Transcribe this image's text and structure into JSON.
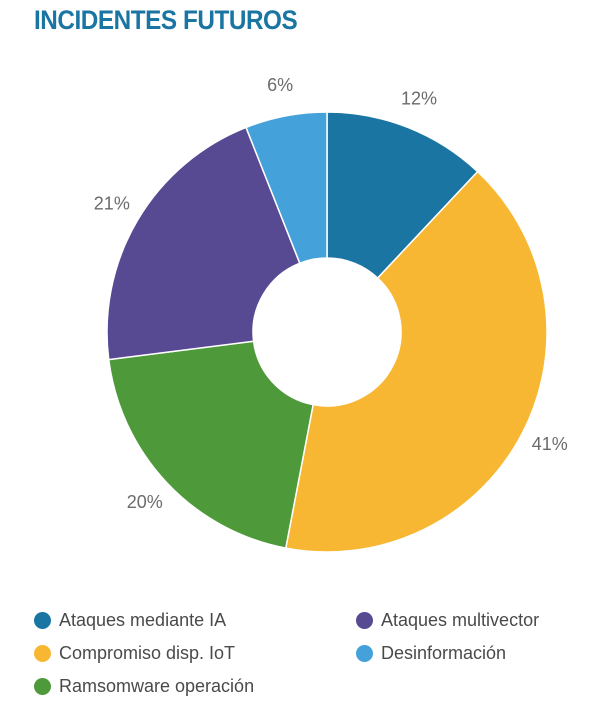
{
  "title": "INCIDENTES FUTUROS",
  "colors": {
    "title": "#1a75a3",
    "label": "#6b6b6b"
  },
  "chart_data": {
    "type": "pie",
    "donut": true,
    "title": "INCIDENTES FUTUROS",
    "legend_position": "bottom",
    "categories": [
      "Ataques mediante IA",
      "Compromiso disp. IoT",
      "Ramsomware operación",
      "Ataques multivector",
      "Desinformación"
    ],
    "values": [
      12,
      41,
      20,
      21,
      6
    ],
    "value_labels": [
      "12%",
      "41%",
      "20%",
      "21%",
      "6%"
    ],
    "colors": [
      "#1a75a3",
      "#f8b733",
      "#4e9a3b",
      "#574a93",
      "#45a1d9"
    ]
  },
  "legend": [
    {
      "label": "Ataques mediante IA",
      "color": "#1a75a3"
    },
    {
      "label": "Ataques multivector",
      "color": "#574a93"
    },
    {
      "label": "Compromiso disp. IoT",
      "color": "#f8b733"
    },
    {
      "label": "Desinformación",
      "color": "#45a1d9"
    },
    {
      "label": "Ramsomware operación",
      "color": "#4e9a3b"
    }
  ]
}
